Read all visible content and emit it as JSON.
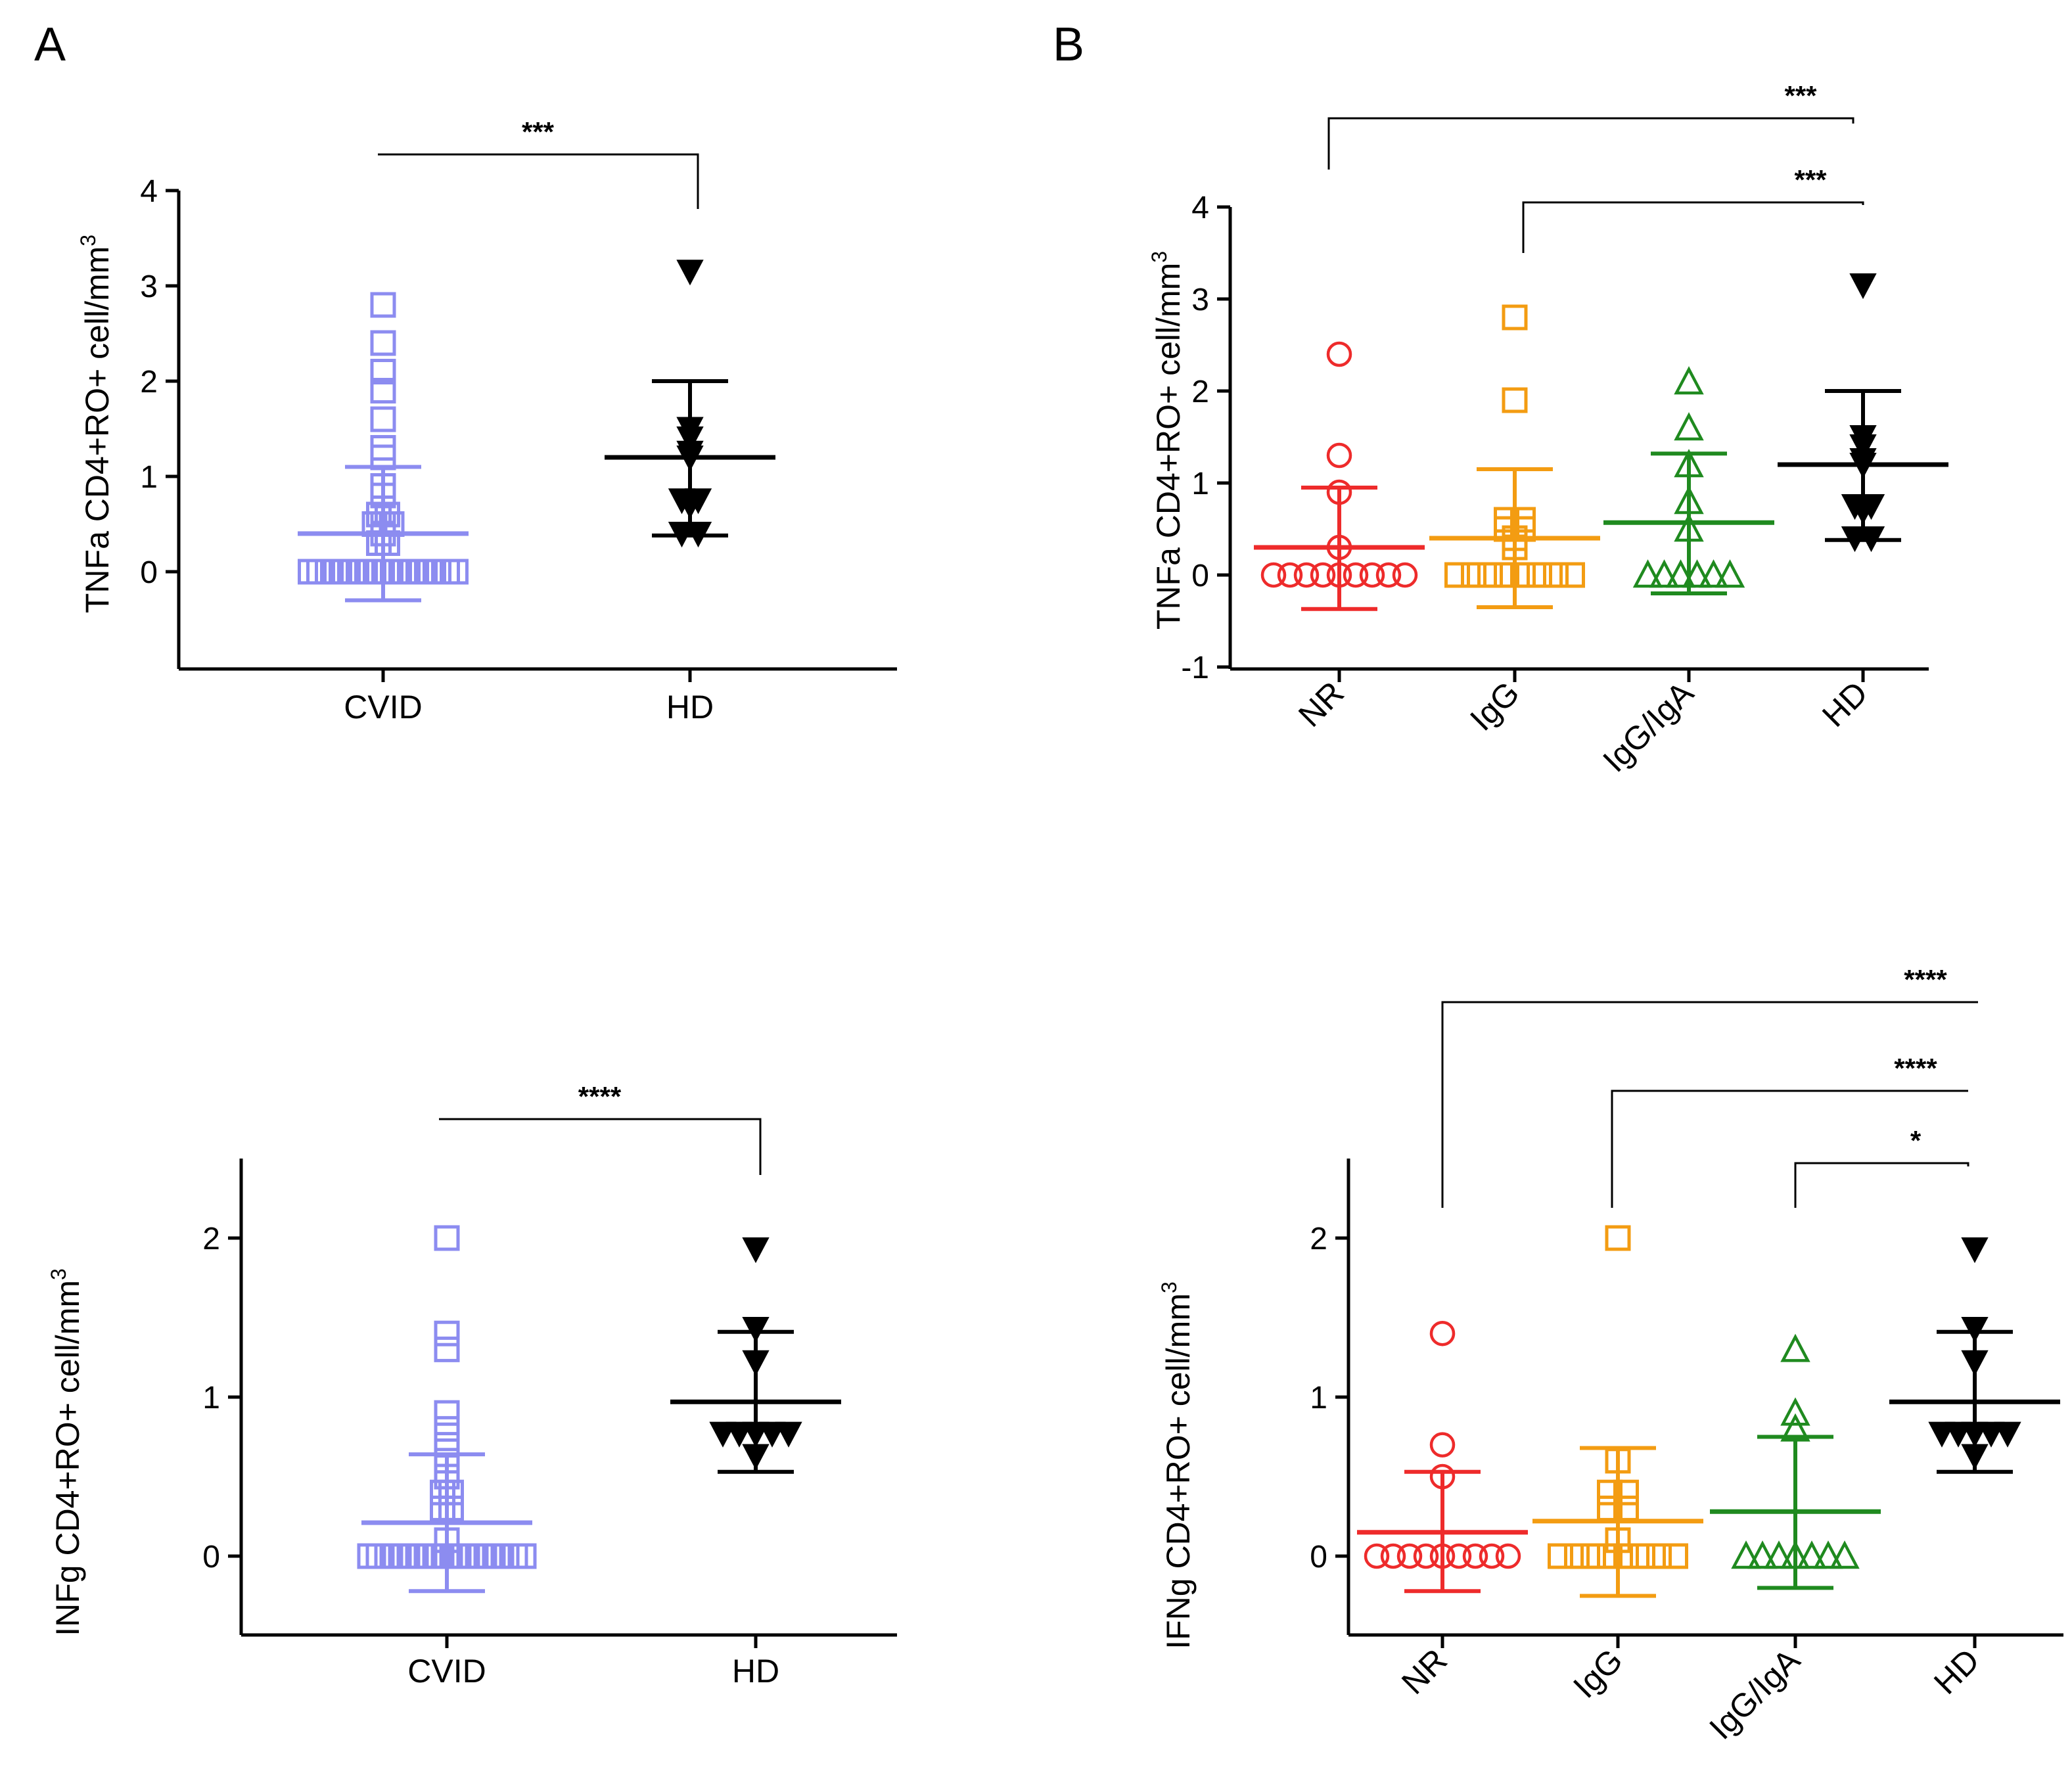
{
  "panel_labels": [
    "A",
    "B"
  ],
  "colors": {
    "cvid": "#8c8cf0",
    "hd": "#000000",
    "nr": "#ee2b2b",
    "igg": "#f39c12",
    "iggiga": "#1f8a1f"
  },
  "chart_data": [
    {
      "id": "A-top",
      "type": "scatter",
      "title": "",
      "ylabel": "TNFa CD4+RO+ cell/mm",
      "ylabel_sup": "3",
      "ylim": [
        -1,
        4
      ],
      "yticks": [
        "0",
        "1",
        "2",
        "3",
        "4"
      ],
      "categories": [
        "CVID",
        "HD"
      ],
      "series": [
        {
          "name": "CVID",
          "marker": "square-open",
          "color": "#8c8cf0",
          "mean": 0.4,
          "sd_low": -0.3,
          "sd_high": 1.1,
          "values": [
            2.8,
            2.4,
            2.1,
            1.9,
            1.6,
            1.3,
            1.2,
            0.9,
            0.8,
            0.6,
            0.6,
            0.5,
            0.5,
            0.5,
            0.4,
            0.3,
            0.3,
            0.0,
            0.0,
            0.0,
            0.0,
            0.0,
            0.0,
            0.0,
            0.0,
            0.0,
            0.0,
            0.0,
            0.0,
            0.0,
            0.0,
            0.0,
            0.0,
            0.0,
            0.0
          ]
        },
        {
          "name": "HD",
          "marker": "triangle-down",
          "color": "#000000",
          "mean": 1.2,
          "sd_low": 0.38,
          "sd_high": 2.0,
          "values": [
            3.15,
            1.5,
            1.4,
            1.25,
            1.2,
            0.75,
            0.75,
            0.7,
            0.4,
            0.4
          ]
        }
      ],
      "brackets": [
        {
          "from": "CVID",
          "to": "HD",
          "label": "***"
        }
      ]
    },
    {
      "id": "B-top",
      "type": "scatter",
      "title": "",
      "ylabel": "TNFa CD4+RO+ cell/mm",
      "ylabel_sup": "3",
      "ylim": [
        -1,
        4
      ],
      "yticks": [
        "-1",
        "0",
        "1",
        "2",
        "3",
        "4"
      ],
      "categories": [
        "NR",
        "IgG",
        "IgG/IgA",
        "HD"
      ],
      "series": [
        {
          "name": "NR",
          "marker": "circle-open",
          "color": "#ee2b2b",
          "mean": 0.3,
          "sd_low": -0.37,
          "sd_high": 0.95,
          "values": [
            2.4,
            1.3,
            0.9,
            0.3,
            0.0,
            0.0,
            0.0,
            0.0,
            0.0,
            0.0,
            0.0,
            0.0,
            0.0
          ]
        },
        {
          "name": "IgG",
          "marker": "square-open",
          "color": "#f39c12",
          "mean": 0.4,
          "sd_low": -0.35,
          "sd_high": 1.15,
          "values": [
            2.8,
            1.9,
            0.6,
            0.6,
            0.5,
            0.5,
            0.4,
            0.3,
            0.0,
            0.0,
            0.0,
            0.0,
            0.0,
            0.0,
            0.0,
            0.0
          ]
        },
        {
          "name": "IgG/IgA",
          "marker": "triangle-open",
          "color": "#1f8a1f",
          "mean": 0.57,
          "sd_low": -0.2,
          "sd_high": 1.32,
          "values": [
            2.1,
            1.6,
            1.2,
            0.8,
            0.5,
            0.0,
            0.0,
            0.0,
            0.0,
            0.0,
            0.0
          ]
        },
        {
          "name": "HD",
          "marker": "triangle-down",
          "color": "#000000",
          "mean": 1.2,
          "sd_low": 0.38,
          "sd_high": 2.0,
          "values": [
            3.15,
            1.5,
            1.4,
            1.25,
            1.2,
            0.75,
            0.75,
            0.7,
            0.4,
            0.4
          ]
        }
      ],
      "brackets": [
        {
          "from": "NR",
          "to": "HD",
          "label": "***"
        },
        {
          "from": "IgG",
          "to": "HD",
          "label": "***"
        }
      ]
    },
    {
      "id": "A-bottom",
      "type": "scatter",
      "title": "",
      "ylabel": "INFg CD4+RO+ cell/mm",
      "ylabel_sup": "3",
      "ylim": [
        -0.5,
        2.5
      ],
      "yticks": [
        "0",
        "1",
        "2"
      ],
      "categories": [
        "CVID",
        "HD"
      ],
      "series": [
        {
          "name": "CVID",
          "marker": "square-open",
          "color": "#8c8cf0",
          "mean": 0.21,
          "sd_low": -0.22,
          "sd_high": 0.64,
          "values": [
            2.0,
            1.4,
            1.3,
            0.9,
            0.8,
            0.7,
            0.6,
            0.5,
            0.4,
            0.4,
            0.3,
            0.3,
            0.1,
            0.0,
            0.0,
            0.0,
            0.0,
            0.0,
            0.0,
            0.0,
            0.0,
            0.0,
            0.0,
            0.0,
            0.0,
            0.0,
            0.0,
            0.0,
            0.0,
            0.0,
            0.0,
            0.0
          ]
        },
        {
          "name": "HD",
          "marker": "triangle-down",
          "color": "#000000",
          "mean": 0.97,
          "sd_low": 0.53,
          "sd_high": 1.41,
          "values": [
            1.93,
            1.43,
            1.22,
            0.77,
            0.77,
            0.77,
            0.77,
            0.77,
            0.63
          ]
        }
      ],
      "brackets": [
        {
          "from": "CVID",
          "to": "HD",
          "label": "****"
        }
      ]
    },
    {
      "id": "B-bottom",
      "type": "scatter",
      "title": "",
      "ylabel": "IFNg CD4+RO+ cell/mm",
      "ylabel_sup": "3",
      "ylim": [
        -0.5,
        2.5
      ],
      "yticks": [
        "0",
        "1",
        "2"
      ],
      "categories": [
        "NR",
        "IgG",
        "IgG/IgA",
        "HD"
      ],
      "series": [
        {
          "name": "NR",
          "marker": "circle-open",
          "color": "#ee2b2b",
          "mean": 0.15,
          "sd_low": -0.22,
          "sd_high": 0.53,
          "values": [
            1.4,
            0.7,
            0.5,
            0.0,
            0.0,
            0.0,
            0.0,
            0.0,
            0.0,
            0.0,
            0.0,
            0.0
          ]
        },
        {
          "name": "IgG",
          "marker": "square-open",
          "color": "#f39c12",
          "mean": 0.22,
          "sd_low": -0.25,
          "sd_high": 0.68,
          "values": [
            2.0,
            0.6,
            0.4,
            0.4,
            0.3,
            0.3,
            0.1,
            0.0,
            0.0,
            0.0,
            0.0,
            0.0,
            0.0,
            0.0,
            0.0
          ]
        },
        {
          "name": "IgG/IgA",
          "marker": "triangle-open",
          "color": "#1f8a1f",
          "mean": 0.28,
          "sd_low": -0.2,
          "sd_high": 0.75,
          "values": [
            1.3,
            0.9,
            0.8,
            0.0,
            0.0,
            0.0,
            0.0,
            0.0,
            0.0,
            0.0
          ]
        },
        {
          "name": "HD",
          "marker": "triangle-down",
          "color": "#000000",
          "mean": 0.97,
          "sd_low": 0.53,
          "sd_high": 1.41,
          "values": [
            1.93,
            1.43,
            1.22,
            0.77,
            0.77,
            0.77,
            0.77,
            0.77,
            0.63
          ]
        }
      ],
      "brackets": [
        {
          "from": "NR",
          "to": "HD",
          "label": "****"
        },
        {
          "from": "IgG",
          "to": "HD",
          "label": "****"
        },
        {
          "from": "IgG/IgA",
          "to": "HD",
          "label": "*"
        }
      ]
    }
  ]
}
